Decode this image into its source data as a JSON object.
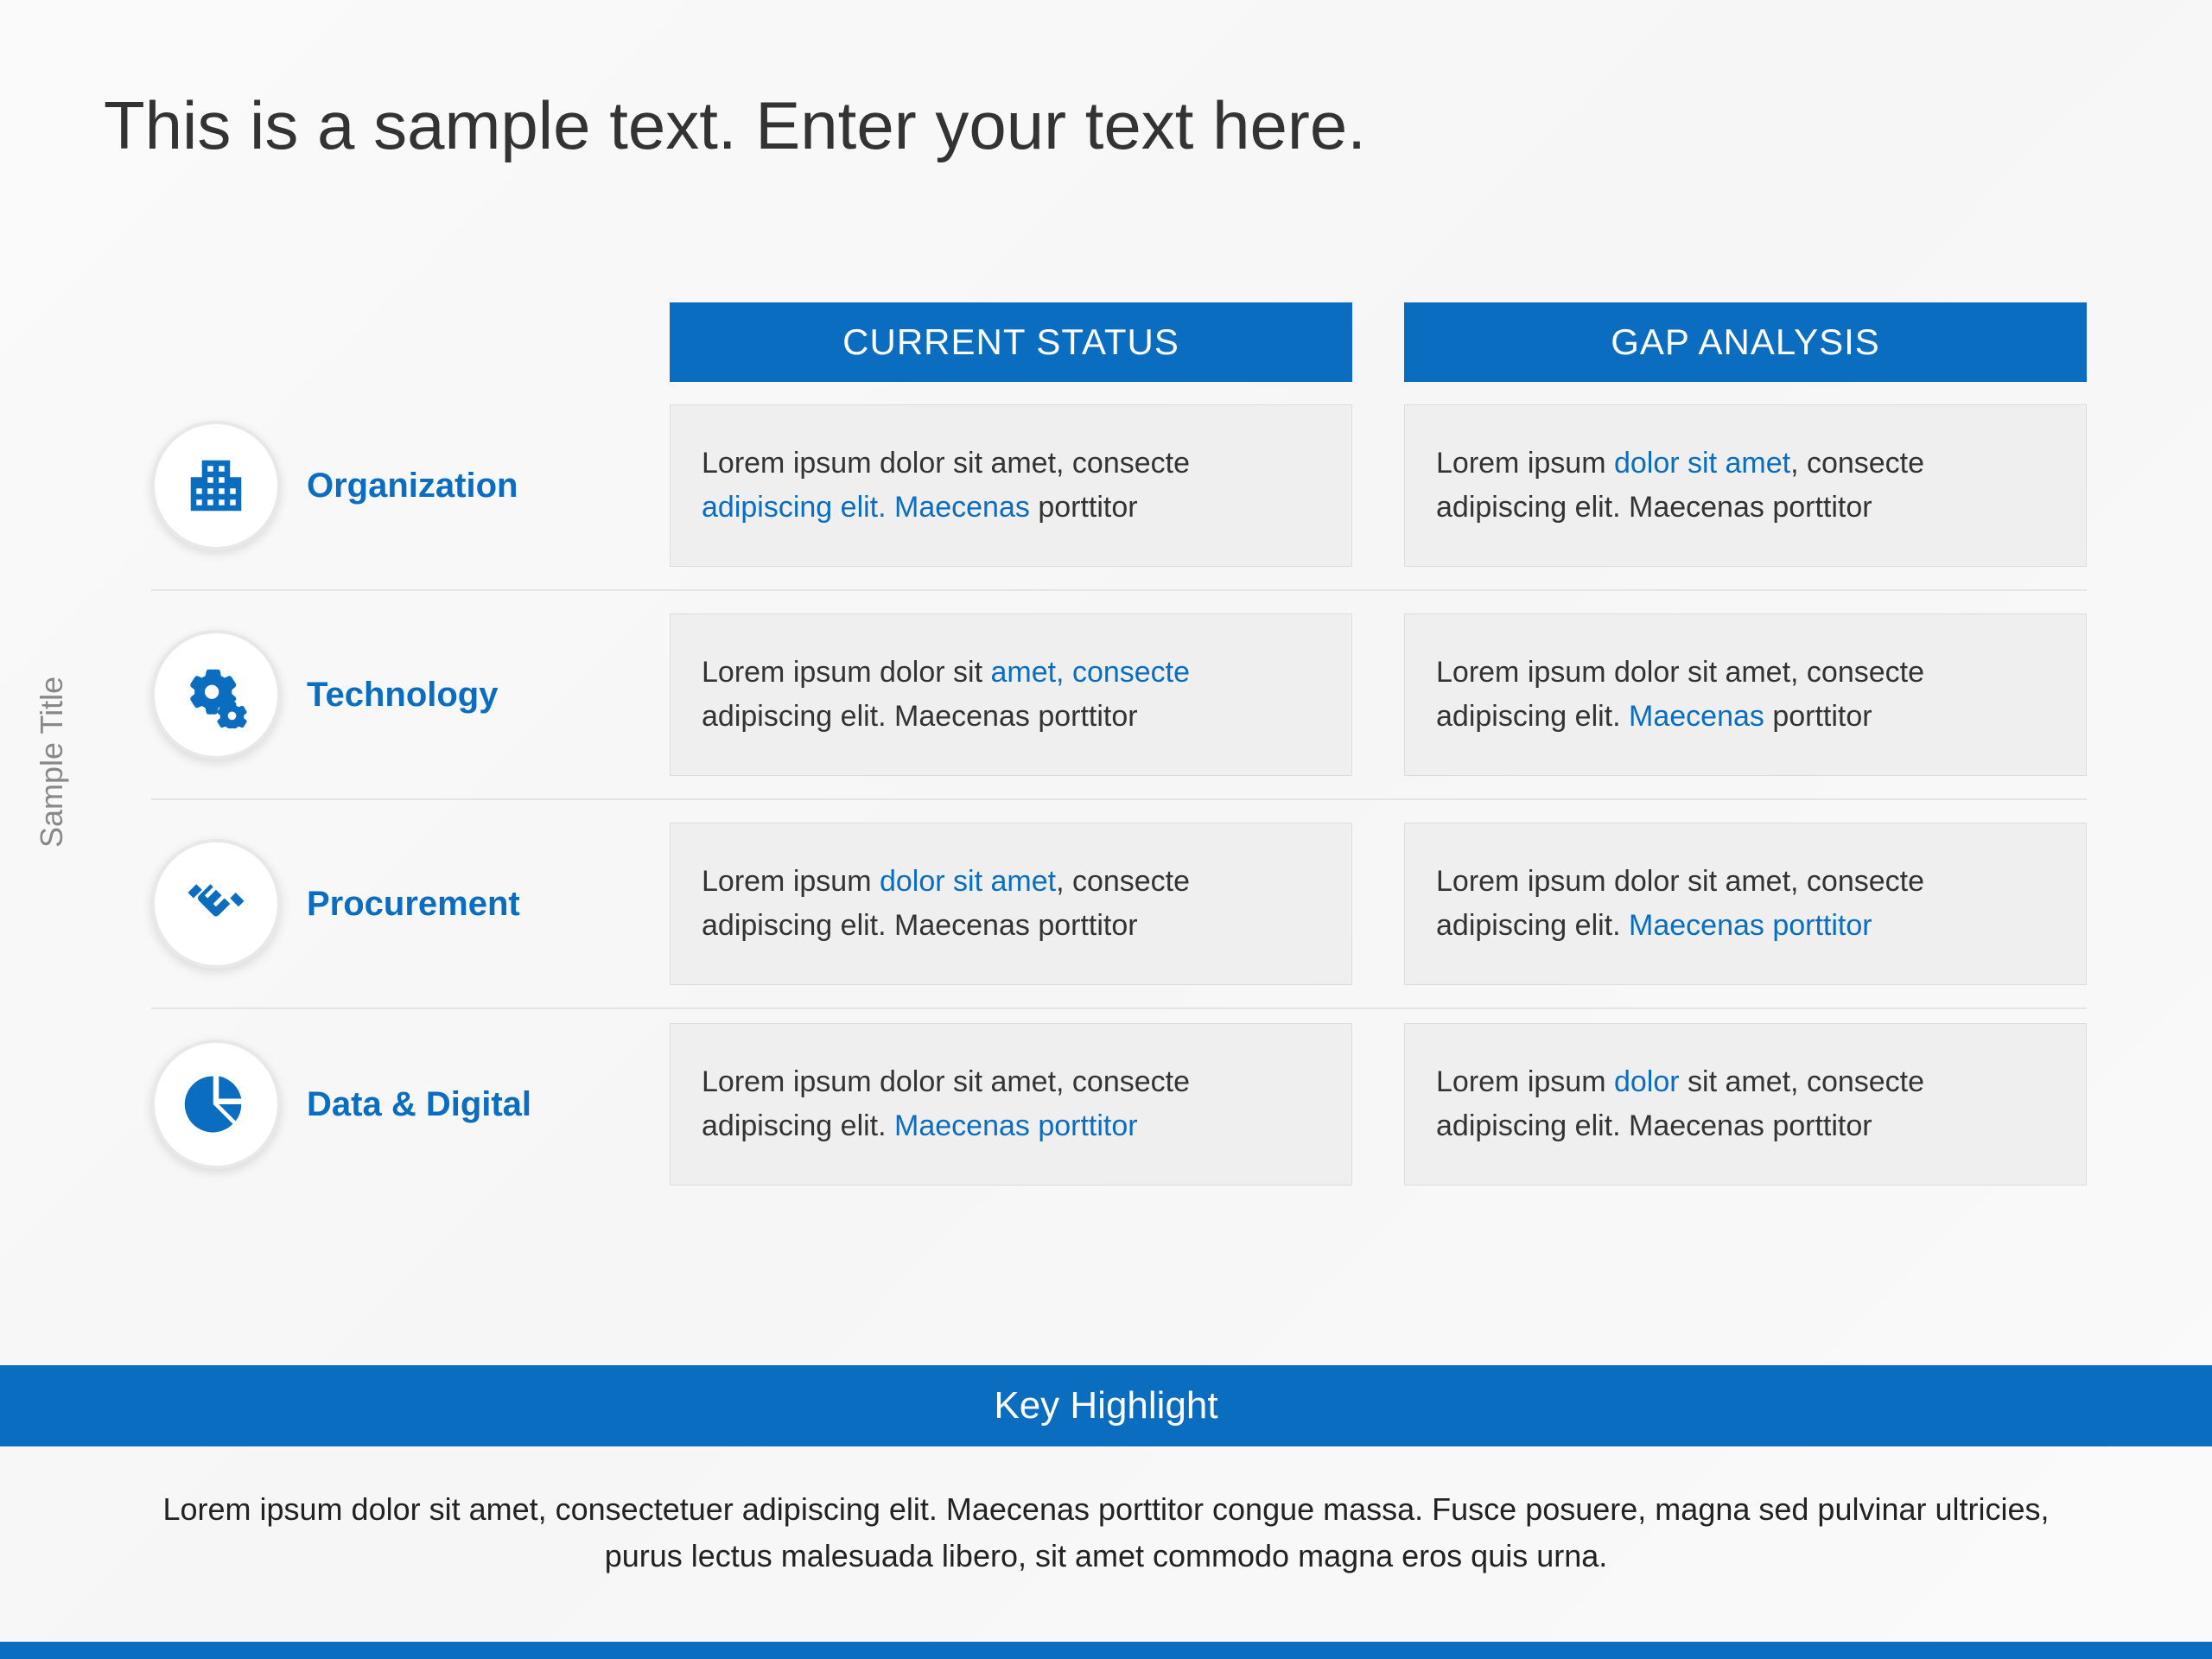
{
  "slide": {
    "title": "This is a sample text. Enter your text here.",
    "sidebar_label": "Sample Title"
  },
  "colors": {
    "accent": "#0b6dc0",
    "cell_bg": "#efefef",
    "text": "#333",
    "muted": "#888"
  },
  "table": {
    "headers": {
      "status": "CURRENT STATUS",
      "gap": "GAP ANALYSIS"
    },
    "rows": [
      {
        "icon": "buildings",
        "label": "Organization",
        "status_html": "Lorem ipsum dolor sit amet, consecte <span class='hl'>adipiscing elit. Maecenas</span> porttitor",
        "gap_html": "Lorem ipsum <span class='hl'>dolor sit amet</span>, consecte adipiscing elit. Maecenas porttitor"
      },
      {
        "icon": "gears",
        "label": "Technology",
        "status_html": "Lorem ipsum dolor sit <span class='hl'>amet, consecte</span> adipiscing elit. Maecenas porttitor",
        "gap_html": "Lorem ipsum dolor sit amet, consecte adipiscing elit. <span class='hl'>Maecenas</span> porttitor"
      },
      {
        "icon": "handshake",
        "label": "Procurement",
        "status_html": "Lorem ipsum <span class='hl'>dolor sit amet</span>, consecte adipiscing elit. Maecenas porttitor",
        "gap_html": "Lorem ipsum dolor sit amet, consecte adipiscing elit. <span class='hl'>Maecenas porttitor</span>"
      },
      {
        "icon": "pie",
        "label": "Data & Digital",
        "status_html": "Lorem ipsum dolor sit amet, consecte adipiscing elit. <span class='hl'>Maecenas porttitor</span>",
        "gap_html": "Lorem ipsum <span class='hl'>dolor</span> sit amet, consecte adipiscing elit. Maecenas porttitor"
      }
    ]
  },
  "key_highlight": {
    "title": "Key Highlight",
    "body": "Lorem ipsum dolor sit amet, consectetuer adipiscing elit. Maecenas porttitor congue massa. Fusce posuere, magna sed pulvinar ultricies, purus lectus malesuada libero, sit amet commodo magna eros quis urna."
  }
}
